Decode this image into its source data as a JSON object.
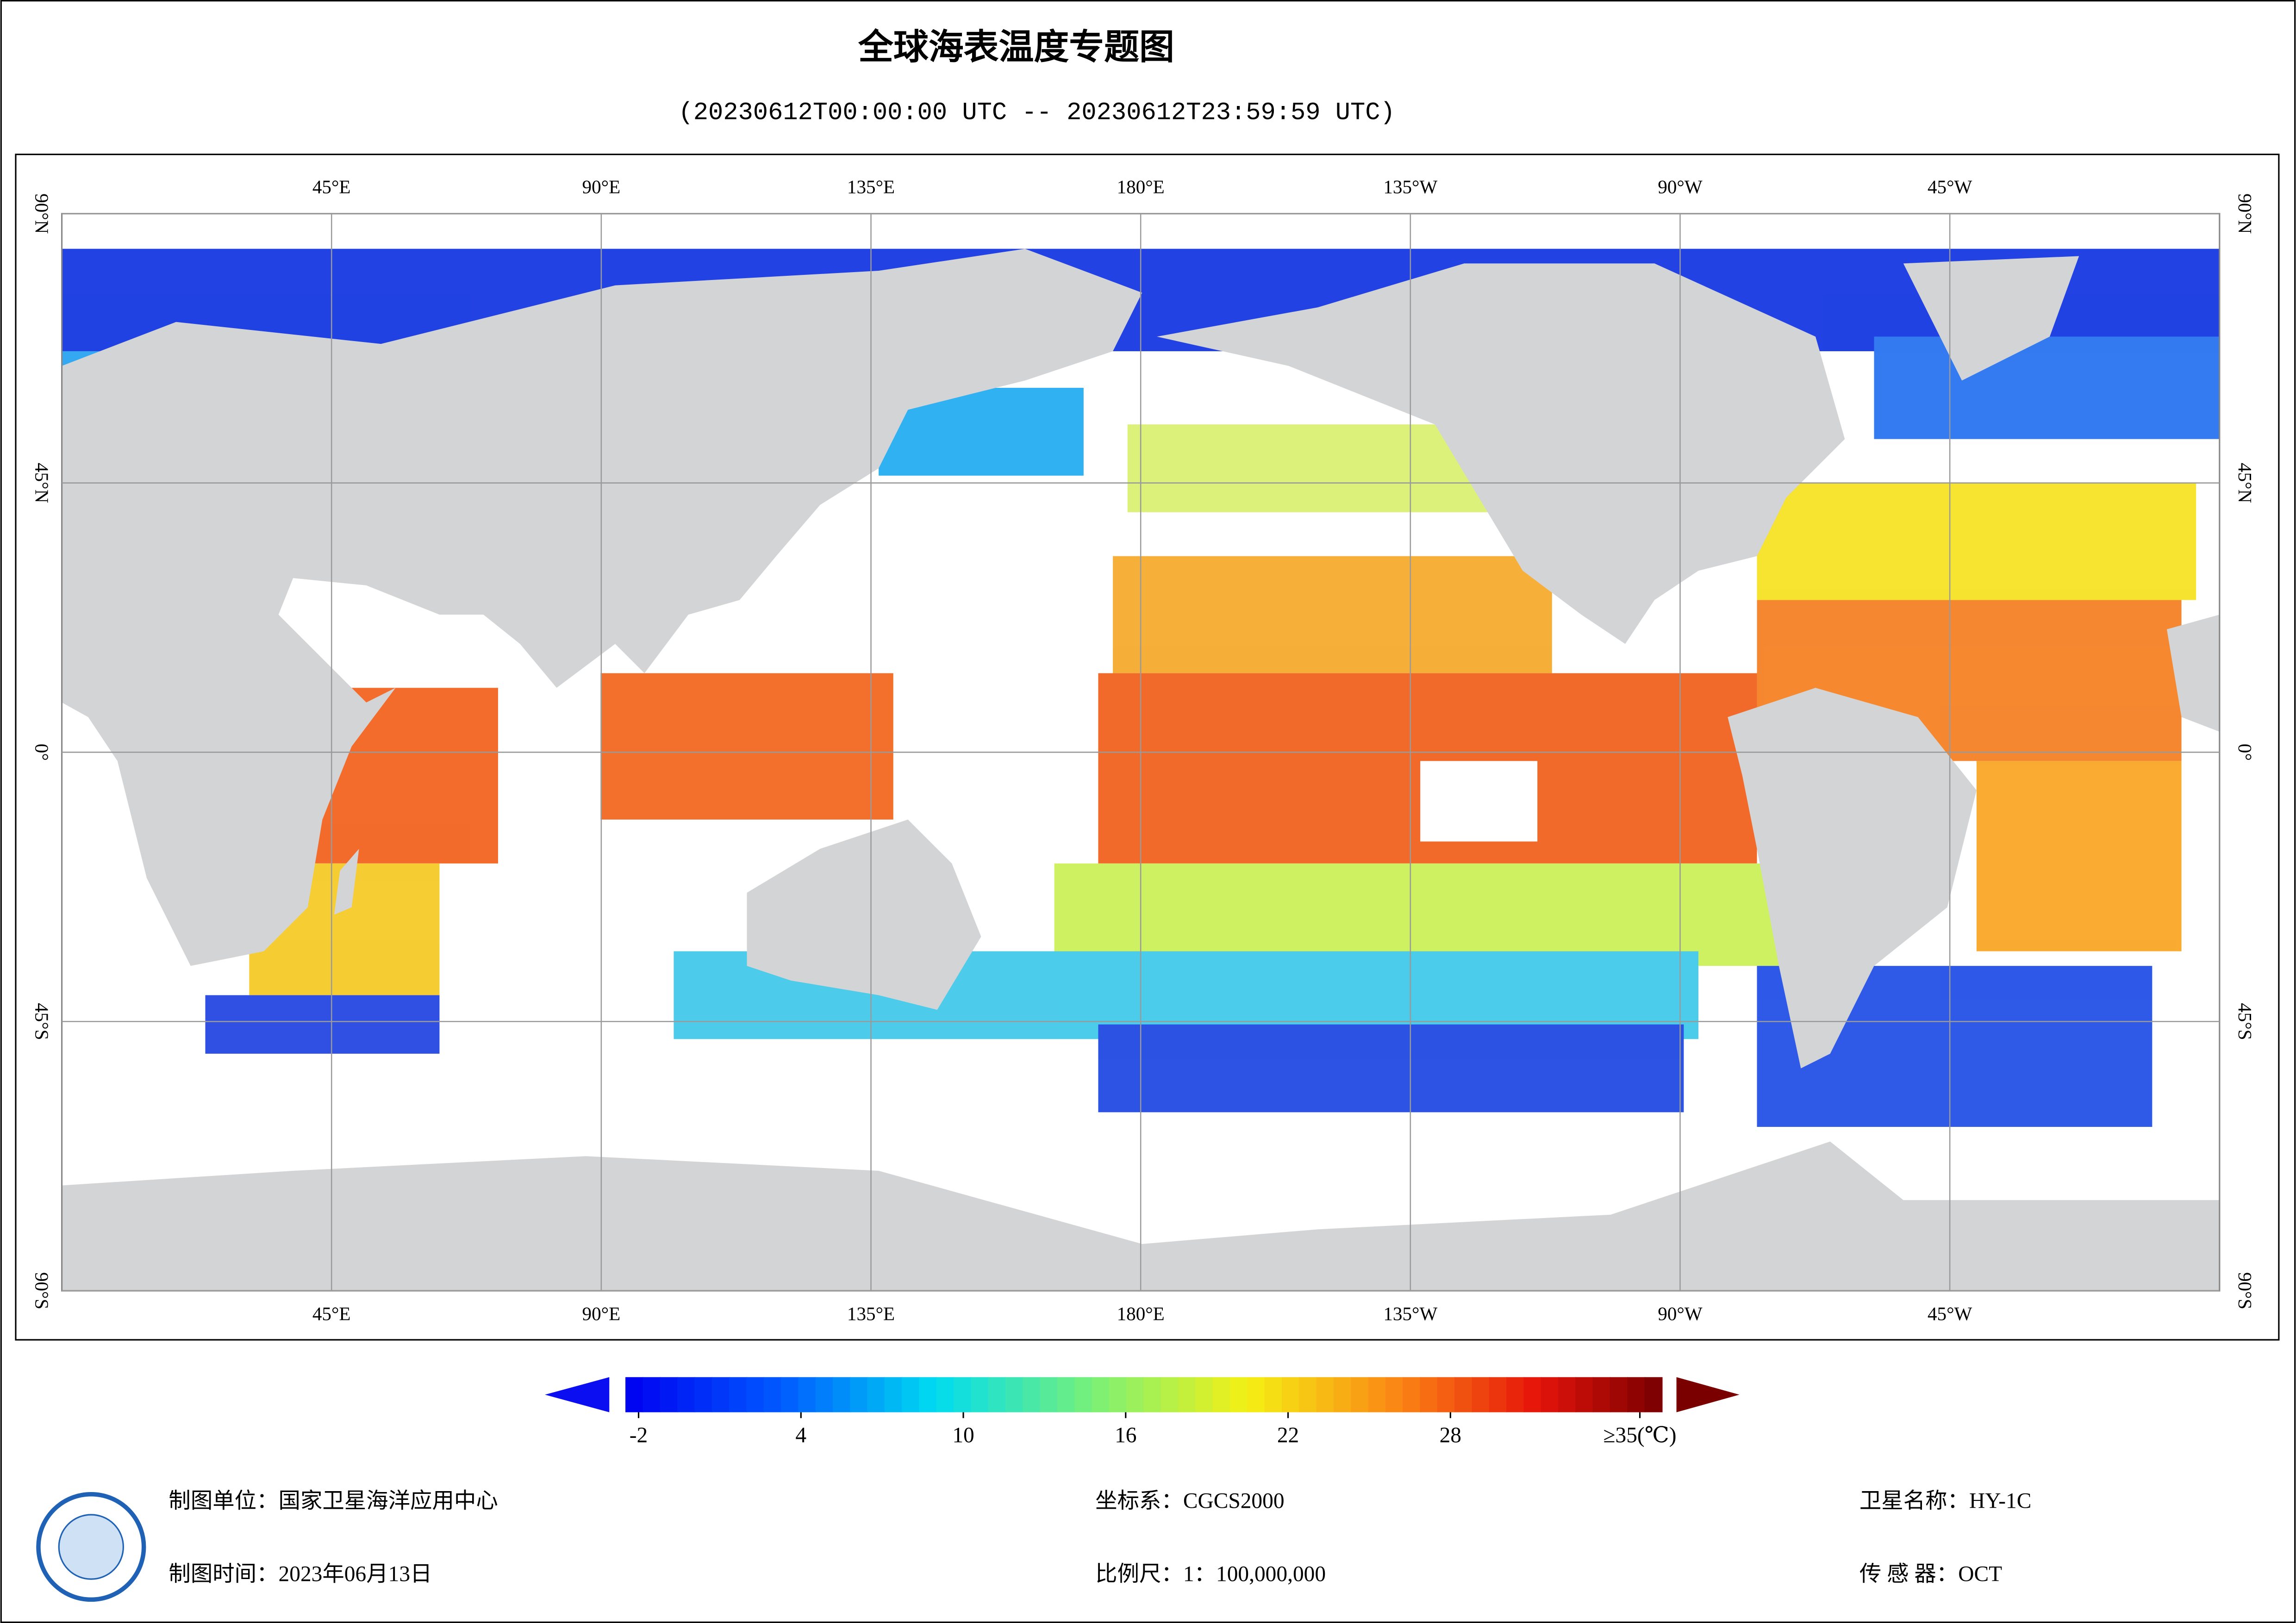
{
  "header": {
    "title": "全球海表温度专题图",
    "subtitle": "(20230612T00:00:00 UTC -- 20230612T23:59:59 UTC)"
  },
  "map": {
    "lon_ticks": [
      {
        "value": 45,
        "label": "45°E"
      },
      {
        "value": 90,
        "label": "90°E"
      },
      {
        "value": 135,
        "label": "135°E"
      },
      {
        "value": 180,
        "label": "180°E"
      },
      {
        "value": -135,
        "label": "135°W"
      },
      {
        "value": -90,
        "label": "90°W"
      },
      {
        "value": -45,
        "label": "45°W"
      }
    ],
    "lat_ticks": [
      {
        "value": 90,
        "label": "90°N"
      },
      {
        "value": 45,
        "label": "45°N"
      },
      {
        "value": 0,
        "label": "0°"
      },
      {
        "value": -45,
        "label": "45°S"
      },
      {
        "value": -90,
        "label": "90°S"
      }
    ]
  },
  "colorbar": {
    "ticks": [
      {
        "value": -2,
        "label": "-2"
      },
      {
        "value": 4,
        "label": "4"
      },
      {
        "value": 10,
        "label": "10"
      },
      {
        "value": 16,
        "label": "16"
      },
      {
        "value": 22,
        "label": "22"
      },
      {
        "value": 28,
        "label": "28"
      },
      {
        "value": 35,
        "label": "≥35(℃)"
      }
    ]
  },
  "footer": {
    "unit": "制图单位：国家卫星海洋应用中心",
    "date": "制图时间：2023年06月13日",
    "crs": "坐标系：CGCS2000",
    "scale": "比例尺：1：100,000,000",
    "satellite": "卫星名称：HY-1C",
    "sensor": "传 感 器：OCT"
  }
}
